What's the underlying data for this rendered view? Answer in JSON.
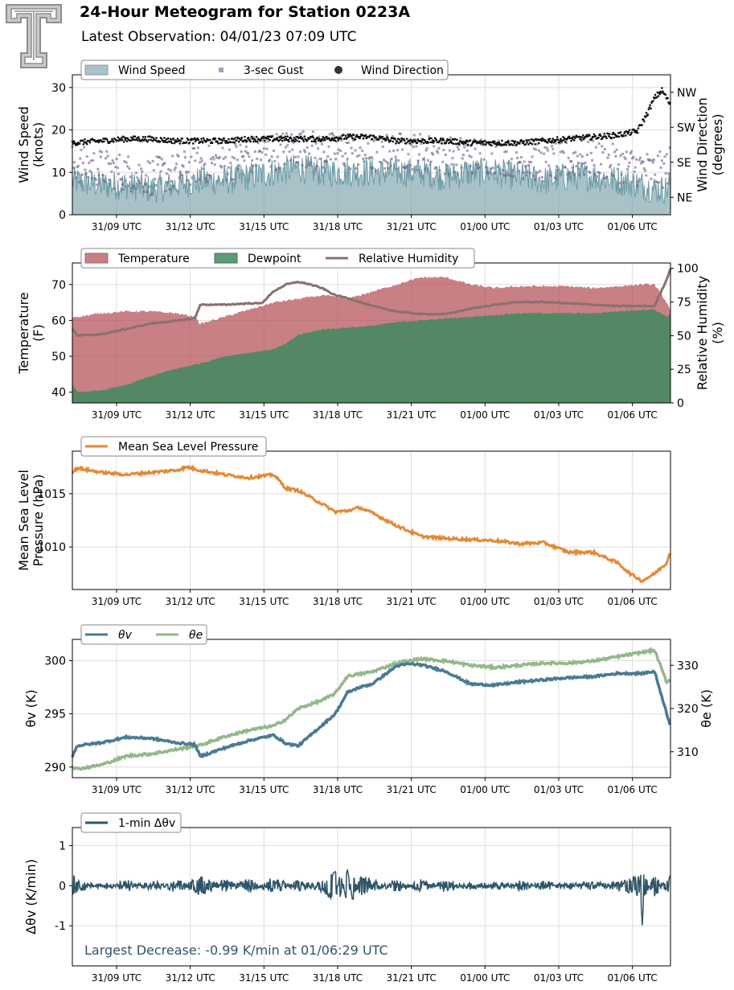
{
  "header": {
    "title": "24-Hour Meteogram for Station 0223A",
    "subtitle": "Latest Observation: 04/01/23 07:09 UTC",
    "logo_icon": "texas-tech-double-t-logo-icon"
  },
  "time_axis": {
    "start_hour": 6.8,
    "end_hour": 31.15,
    "ticks": [
      {
        "hour": 8.6,
        "label": "31/09 UTC"
      },
      {
        "hour": 11.6,
        "label": "31/12 UTC"
      },
      {
        "hour": 14.6,
        "label": "31/15 UTC"
      },
      {
        "hour": 17.6,
        "label": "31/18 UTC"
      },
      {
        "hour": 20.6,
        "label": "31/21 UTC"
      },
      {
        "hour": 23.6,
        "label": "01/00 UTC"
      },
      {
        "hour": 26.6,
        "label": "01/03 UTC"
      },
      {
        "hour": 29.6,
        "label": "01/06 UTC"
      }
    ]
  },
  "colors": {
    "wind_speed": "#6e9aa4",
    "gust": "#6b5f86",
    "wind_dir": "#111111",
    "temperature": "#b04a50",
    "dewpoint": "#3f8a5e",
    "rh": "#8a7070",
    "mslp": "#e38a36",
    "theta_v": "#4a7a94",
    "theta_e": "#94b88c",
    "dtheta": "#2e5568",
    "grid": "#dddddd",
    "annotation": "#2e5568"
  },
  "chart_data": [
    {
      "type": "area",
      "name": "wind",
      "ylabel": [
        "Wind Speed",
        "(knots)"
      ],
      "y2label": [
        "Wind Direction",
        "(degrees)"
      ],
      "ylim": [
        0,
        33
      ],
      "yticks": [
        0,
        10,
        20,
        30
      ],
      "y2lim": [
        0,
        360
      ],
      "y2ticks": [
        {
          "value": 45,
          "label": "NE"
        },
        {
          "value": 135,
          "label": "SE"
        },
        {
          "value": 225,
          "label": "SW"
        },
        {
          "value": 315,
          "label": "NW"
        }
      ],
      "legend": [
        "Wind Speed",
        "3-sec Gust",
        "Wind Direction"
      ],
      "legend_placement": "top-left",
      "grid": true,
      "series": [
        {
          "name": "Wind Speed",
          "kind": "area",
          "hours": [
            6.8,
            8,
            9,
            10,
            11,
            12,
            13,
            14,
            15,
            16,
            17,
            18,
            19,
            20,
            21,
            22,
            23,
            24,
            25,
            26,
            27,
            28,
            29,
            30,
            30.5,
            31,
            31.15
          ],
          "values": [
            8,
            7,
            7,
            6,
            7,
            8,
            8,
            9,
            10,
            11,
            10,
            10,
            10,
            10,
            10,
            9,
            10,
            10,
            9,
            8,
            9,
            9,
            8,
            7,
            6,
            6,
            8
          ]
        },
        {
          "name": "3-sec Gust",
          "kind": "scatter",
          "hours": [
            6.8,
            8,
            9,
            10,
            11,
            12,
            13,
            14,
            15,
            16,
            17,
            18,
            19,
            20,
            21,
            22,
            23,
            24,
            25,
            26,
            27,
            28,
            29,
            30,
            30.5,
            31,
            31.15
          ],
          "values": [
            12,
            11,
            10,
            9,
            10,
            12,
            12,
            14,
            15,
            16,
            15,
            15,
            14,
            15,
            15,
            14,
            14,
            14,
            13,
            12,
            13,
            13,
            12,
            11,
            10,
            11,
            12
          ]
        },
        {
          "name": "Wind Direction",
          "kind": "scatter",
          "axis": "y2",
          "hours": [
            6.8,
            8,
            9,
            10,
            11,
            12,
            13,
            14,
            15,
            16,
            17,
            18,
            19,
            20,
            21,
            22,
            23,
            24,
            25,
            26,
            27,
            28,
            29,
            29.8,
            30.2,
            30.5,
            30.8,
            31,
            31.15
          ],
          "values": [
            185,
            190,
            195,
            195,
            190,
            190,
            190,
            195,
            195,
            195,
            195,
            200,
            200,
            190,
            190,
            190,
            185,
            185,
            185,
            190,
            195,
            200,
            205,
            215,
            260,
            300,
            320,
            300,
            280
          ]
        }
      ]
    },
    {
      "type": "area",
      "name": "temperature",
      "ylabel": [
        "Temperature",
        "(F)"
      ],
      "y2label": [
        "Relative Humidity",
        "(%)"
      ],
      "ylim": [
        37,
        76
      ],
      "yticks": [
        40,
        50,
        60,
        70
      ],
      "y2lim": [
        0,
        104
      ],
      "y2ticks": [
        0,
        25,
        50,
        75,
        100
      ],
      "legend": [
        "Temperature",
        "Dewpoint",
        "Relative Humidity"
      ],
      "legend_placement": "top-left",
      "grid": true,
      "series": [
        {
          "name": "Temperature",
          "kind": "area",
          "hours": [
            6.8,
            7,
            8,
            9,
            10,
            11,
            11.8,
            12,
            13,
            14,
            15,
            16,
            17,
            18,
            19,
            20,
            21,
            22,
            23,
            24,
            25,
            26,
            27,
            28,
            29,
            30,
            30.5,
            31,
            31.15
          ],
          "values": [
            61,
            61,
            62,
            62.5,
            62.5,
            62,
            61,
            59,
            61,
            63,
            65,
            66,
            67,
            66,
            68,
            70,
            72,
            72,
            70,
            69,
            69.5,
            69.5,
            69.5,
            69,
            69.5,
            70,
            70,
            65,
            63
          ]
        },
        {
          "name": "Dewpoint",
          "kind": "area",
          "hours": [
            6.8,
            7,
            8,
            9,
            10,
            11,
            12,
            13,
            14,
            15,
            15.5,
            16,
            17,
            18,
            19,
            20,
            21,
            22,
            23,
            24,
            25,
            26,
            27,
            28,
            29,
            30,
            30.5,
            31,
            31.15
          ],
          "values": [
            42,
            40,
            40.5,
            42,
            44.5,
            46.5,
            48,
            50,
            51,
            52,
            53.5,
            56,
            57.5,
            58,
            58.5,
            59.5,
            60,
            60.5,
            61,
            61.5,
            62,
            62,
            62,
            62,
            62.5,
            63,
            63,
            61,
            62
          ]
        },
        {
          "name": "Relative Humidity",
          "kind": "line",
          "axis": "y2",
          "hours": [
            6.8,
            7,
            8,
            9,
            10,
            11,
            11.8,
            12,
            13,
            14,
            14.5,
            15,
            15.5,
            16,
            16.5,
            17,
            17.5,
            18,
            19,
            20,
            21,
            22,
            23,
            24,
            25,
            26,
            27,
            28,
            29,
            30,
            30.5,
            31,
            31.15
          ],
          "values": [
            55,
            50,
            51,
            55,
            59,
            61,
            63,
            73,
            73,
            74,
            74,
            83,
            88,
            90,
            88,
            85,
            80,
            78,
            72,
            68,
            66,
            66,
            70,
            73,
            75,
            75,
            74,
            73,
            72,
            72,
            72,
            92,
            100
          ]
        }
      ]
    },
    {
      "type": "line",
      "name": "pressure",
      "ylabel": [
        "Mean Sea Level",
        "Pressure (hPa)"
      ],
      "ylim": [
        1006,
        1019
      ],
      "yticks": [
        1010,
        1015
      ],
      "legend": [
        "Mean Sea Level Pressure"
      ],
      "legend_placement": "top-left",
      "grid": true,
      "series": [
        {
          "name": "Mean Sea Level Pressure",
          "hours": [
            6.8,
            7,
            8,
            9,
            10,
            11,
            11.5,
            12,
            13,
            14,
            15,
            15.5,
            16,
            17,
            17.5,
            18,
            18.5,
            19,
            20,
            21,
            22,
            23,
            24,
            25,
            26,
            27,
            28,
            29,
            29.5,
            30,
            30.5,
            31,
            31.15
          ],
          "values": [
            1017,
            1017.4,
            1017,
            1016.8,
            1017,
            1017.2,
            1017.5,
            1017.2,
            1016.8,
            1016.5,
            1016.8,
            1015.5,
            1015.3,
            1014,
            1013.3,
            1013.4,
            1013.7,
            1013.2,
            1012,
            1011,
            1010.8,
            1010.7,
            1010.6,
            1010.3,
            1010.4,
            1009.5,
            1009.5,
            1008.5,
            1007.5,
            1006.8,
            1007.5,
            1008.5,
            1009.8
          ]
        }
      ]
    },
    {
      "type": "line",
      "name": "theta",
      "ylabel": [
        "θv (K)"
      ],
      "y2label": [
        "θe (K)"
      ],
      "ylim": [
        289,
        302
      ],
      "yticks": [
        290,
        295,
        300
      ],
      "y2lim": [
        304,
        336
      ],
      "y2ticks": [
        310,
        320,
        330
      ],
      "legend": [
        "θv",
        "θe"
      ],
      "legend_placement": "top-left",
      "grid": true,
      "series": [
        {
          "name": "θv",
          "hours": [
            6.8,
            7,
            8,
            9,
            10,
            11,
            11.8,
            12,
            13,
            14,
            15,
            15.5,
            16,
            17,
            17.5,
            18,
            18.5,
            19,
            20,
            20.5,
            21,
            22,
            23,
            24,
            25,
            26,
            27,
            28,
            29,
            30,
            30.5,
            31,
            31.15
          ],
          "values": [
            291,
            292,
            292.3,
            292.8,
            292.7,
            292.3,
            292.1,
            291,
            291.8,
            292.5,
            293,
            292.2,
            292,
            294,
            295,
            297,
            297.5,
            297.8,
            299.5,
            299.7,
            299.6,
            299,
            297.8,
            297.7,
            298,
            298.2,
            298.4,
            298.5,
            298.8,
            298.8,
            299,
            295,
            293.8
          ]
        },
        {
          "name": "θe",
          "axis": "y2",
          "hours": [
            6.8,
            7,
            8,
            9,
            10,
            11,
            12,
            13,
            14,
            15,
            15.5,
            16,
            17,
            17.5,
            18,
            18.5,
            19,
            20,
            20.5,
            21,
            22,
            23,
            24,
            25,
            26,
            27,
            28,
            29,
            30,
            30.5,
            31,
            31.15
          ],
          "values": [
            306.5,
            306,
            307,
            309,
            309.5,
            310.5,
            311.5,
            313.5,
            315,
            316,
            317.5,
            320,
            322,
            323.5,
            327.5,
            328,
            328.5,
            330.5,
            331,
            331.5,
            331,
            330,
            329.5,
            330,
            330.5,
            330.5,
            331,
            332,
            333,
            333.5,
            326,
            327
          ]
        }
      ]
    },
    {
      "type": "line",
      "name": "dtheta",
      "ylabel": [
        "Δθv (K/min)"
      ],
      "ylim": [
        -2,
        1.45
      ],
      "yticks": [
        -1,
        0,
        1
      ],
      "legend": [
        "1-min Δθv"
      ],
      "legend_placement": "top-left",
      "grid": true,
      "annotation": "Largest Decrease: -0.99 K/min at 01/06:29 UTC",
      "series": [
        {
          "name": "1-min Δθv",
          "hours": [
            6.8,
            7,
            8,
            9,
            10,
            11,
            11.8,
            12,
            13,
            14,
            15,
            16,
            17,
            17.5,
            17.7,
            18,
            18.2,
            18.5,
            19,
            20,
            21,
            22,
            23,
            24,
            25,
            26,
            27,
            28,
            29,
            29.9,
            30,
            30.1,
            30.5,
            31,
            31.15
          ],
          "values": [
            0.2,
            0.1,
            -0.05,
            0.08,
            -0.08,
            0.1,
            -0.1,
            -0.2,
            0.1,
            -0.1,
            0.15,
            -0.1,
            0.1,
            0.35,
            -0.3,
            0.4,
            -0.35,
            0.2,
            0.1,
            -0.1,
            0.1,
            -0.1,
            0.05,
            -0.05,
            0.08,
            -0.06,
            0.05,
            -0.05,
            0.05,
            0.2,
            -0.99,
            0.2,
            -0.2,
            0.1,
            0.2
          ]
        }
      ]
    }
  ]
}
